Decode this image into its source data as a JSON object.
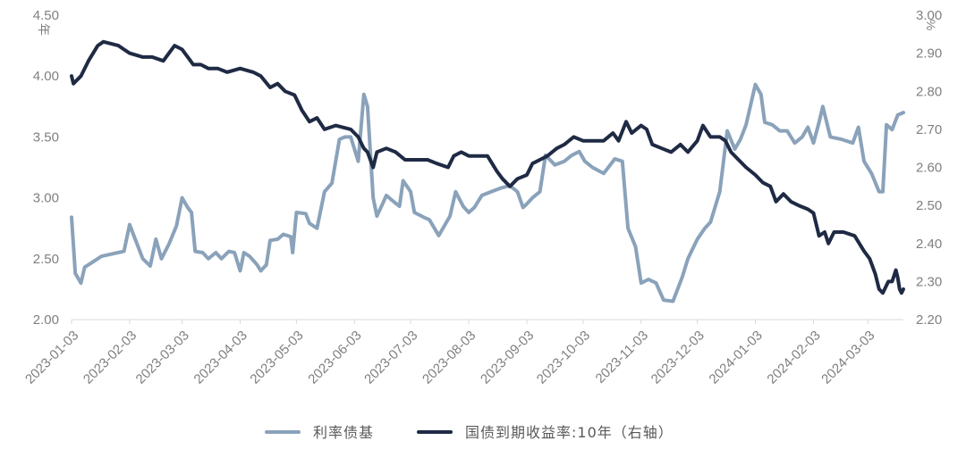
{
  "chart_data": {
    "type": "line",
    "left_axis": {
      "unit": "年",
      "range": [
        2.0,
        4.5
      ],
      "ticks": [
        "2.00",
        "2.50",
        "3.00",
        "3.50",
        "4.00",
        "4.50"
      ]
    },
    "right_axis": {
      "unit": "%",
      "range": [
        2.2,
        3.0
      ],
      "ticks": [
        "2.20",
        "2.30",
        "2.40",
        "2.50",
        "2.60",
        "2.70",
        "2.80",
        "2.90",
        "3.00"
      ]
    },
    "x_ticks": [
      "2023-01-03",
      "2023-02-03",
      "2023-03-03",
      "2023-04-03",
      "2023-05-03",
      "2023-06-03",
      "2023-07-03",
      "2023-08-03",
      "2023-09-03",
      "2023-10-03",
      "2023-11-03",
      "2023-12-03",
      "2024-01-03",
      "2024-02-03",
      "2024-03-03"
    ],
    "x_range": [
      "2023-01-03",
      "2024-03-22"
    ],
    "legend": {
      "position": "bottom"
    },
    "series": [
      {
        "name": "利率债基",
        "axis": "left",
        "color": "#8aa2ba",
        "points": [
          [
            "2023-01-03",
            2.84
          ],
          [
            "2023-01-05",
            2.38
          ],
          [
            "2023-01-08",
            2.3
          ],
          [
            "2023-01-10",
            2.43
          ],
          [
            "2023-01-13",
            2.46
          ],
          [
            "2023-01-16",
            2.49
          ],
          [
            "2023-01-19",
            2.52
          ],
          [
            "2023-01-25",
            2.54
          ],
          [
            "2023-01-31",
            2.56
          ],
          [
            "2023-02-03",
            2.78
          ],
          [
            "2023-02-06",
            2.66
          ],
          [
            "2023-02-10",
            2.5
          ],
          [
            "2023-02-14",
            2.44
          ],
          [
            "2023-02-17",
            2.66
          ],
          [
            "2023-02-20",
            2.5
          ],
          [
            "2023-02-24",
            2.62
          ],
          [
            "2023-02-28",
            2.77
          ],
          [
            "2023-03-03",
            3.0
          ],
          [
            "2023-03-06",
            2.92
          ],
          [
            "2023-03-08",
            2.88
          ],
          [
            "2023-03-10",
            2.56
          ],
          [
            "2023-03-14",
            2.55
          ],
          [
            "2023-03-17",
            2.5
          ],
          [
            "2023-03-21",
            2.55
          ],
          [
            "2023-03-24",
            2.5
          ],
          [
            "2023-03-28",
            2.56
          ],
          [
            "2023-03-31",
            2.55
          ],
          [
            "2023-04-03",
            2.4
          ],
          [
            "2023-04-05",
            2.55
          ],
          [
            "2023-04-08",
            2.52
          ],
          [
            "2023-04-12",
            2.45
          ],
          [
            "2023-04-14",
            2.4
          ],
          [
            "2023-04-17",
            2.45
          ],
          [
            "2023-04-19",
            2.65
          ],
          [
            "2023-04-23",
            2.66
          ],
          [
            "2023-04-26",
            2.7
          ],
          [
            "2023-04-30",
            2.68
          ],
          [
            "2023-05-01",
            2.55
          ],
          [
            "2023-05-03",
            2.88
          ],
          [
            "2023-05-08",
            2.87
          ],
          [
            "2023-05-10",
            2.79
          ],
          [
            "2023-05-14",
            2.75
          ],
          [
            "2023-05-18",
            3.05
          ],
          [
            "2023-05-22",
            3.12
          ],
          [
            "2023-05-26",
            3.48
          ],
          [
            "2023-05-29",
            3.5
          ],
          [
            "2023-06-01",
            3.5
          ],
          [
            "2023-06-05",
            3.3
          ],
          [
            "2023-06-08",
            3.85
          ],
          [
            "2023-06-10",
            3.75
          ],
          [
            "2023-06-13",
            3.0
          ],
          [
            "2023-06-15",
            2.85
          ],
          [
            "2023-06-18",
            2.95
          ],
          [
            "2023-06-20",
            3.02
          ],
          [
            "2023-06-23",
            2.98
          ],
          [
            "2023-06-27",
            2.93
          ],
          [
            "2023-06-29",
            3.14
          ],
          [
            "2023-07-03",
            3.05
          ],
          [
            "2023-07-05",
            2.88
          ],
          [
            "2023-07-10",
            2.84
          ],
          [
            "2023-07-13",
            2.82
          ],
          [
            "2023-07-18",
            2.69
          ],
          [
            "2023-07-24",
            2.85
          ],
          [
            "2023-07-27",
            3.05
          ],
          [
            "2023-07-31",
            2.93
          ],
          [
            "2023-08-03",
            2.88
          ],
          [
            "2023-08-06",
            2.92
          ],
          [
            "2023-08-10",
            3.02
          ],
          [
            "2023-08-15",
            3.05
          ],
          [
            "2023-08-20",
            3.08
          ],
          [
            "2023-08-25",
            3.1
          ],
          [
            "2023-08-29",
            3.05
          ],
          [
            "2023-09-01",
            2.92
          ],
          [
            "2023-09-03",
            2.95
          ],
          [
            "2023-09-06",
            3.0
          ],
          [
            "2023-09-10",
            3.05
          ],
          [
            "2023-09-13",
            3.35
          ],
          [
            "2023-09-18",
            3.27
          ],
          [
            "2023-09-23",
            3.3
          ],
          [
            "2023-09-27",
            3.35
          ],
          [
            "2023-10-01",
            3.38
          ],
          [
            "2023-10-04",
            3.3
          ],
          [
            "2023-10-08",
            3.25
          ],
          [
            "2023-10-14",
            3.2
          ],
          [
            "2023-10-20",
            3.32
          ],
          [
            "2023-10-24",
            3.3
          ],
          [
            "2023-10-27",
            2.75
          ],
          [
            "2023-10-31",
            2.6
          ],
          [
            "2023-11-03",
            2.3
          ],
          [
            "2023-11-07",
            2.33
          ],
          [
            "2023-11-11",
            2.3
          ],
          [
            "2023-11-15",
            2.16
          ],
          [
            "2023-11-20",
            2.15
          ],
          [
            "2023-11-25",
            2.35
          ],
          [
            "2023-11-28",
            2.5
          ],
          [
            "2023-12-03",
            2.66
          ],
          [
            "2023-12-07",
            2.75
          ],
          [
            "2023-12-10",
            2.8
          ],
          [
            "2023-12-15",
            3.05
          ],
          [
            "2023-12-19",
            3.55
          ],
          [
            "2023-12-23",
            3.4
          ],
          [
            "2023-12-26",
            3.48
          ],
          [
            "2023-12-29",
            3.6
          ],
          [
            "2024-01-03",
            3.93
          ],
          [
            "2024-01-06",
            3.85
          ],
          [
            "2024-01-08",
            3.62
          ],
          [
            "2024-01-12",
            3.6
          ],
          [
            "2024-01-16",
            3.55
          ],
          [
            "2024-01-20",
            3.55
          ],
          [
            "2024-01-24",
            3.45
          ],
          [
            "2024-01-28",
            3.5
          ],
          [
            "2024-01-31",
            3.58
          ],
          [
            "2024-02-03",
            3.45
          ],
          [
            "2024-02-06",
            3.62
          ],
          [
            "2024-02-08",
            3.75
          ],
          [
            "2024-02-12",
            3.5
          ],
          [
            "2024-02-18",
            3.48
          ],
          [
            "2024-02-24",
            3.45
          ],
          [
            "2024-02-27",
            3.58
          ],
          [
            "2024-03-01",
            3.3
          ],
          [
            "2024-03-05",
            3.2
          ],
          [
            "2024-03-09",
            3.05
          ],
          [
            "2024-03-11",
            3.05
          ],
          [
            "2024-03-13",
            3.6
          ],
          [
            "2024-03-16",
            3.56
          ],
          [
            "2024-03-19",
            3.68
          ],
          [
            "2024-03-22",
            3.7
          ]
        ]
      },
      {
        "name": "国债到期收益率:10年（右轴）",
        "axis": "right",
        "color": "#1f2a44",
        "points": [
          [
            "2023-01-03",
            2.84
          ],
          [
            "2023-01-04",
            2.82
          ],
          [
            "2023-01-08",
            2.84
          ],
          [
            "2023-01-12",
            2.88
          ],
          [
            "2023-01-17",
            2.92
          ],
          [
            "2023-01-20",
            2.93
          ],
          [
            "2023-01-28",
            2.92
          ],
          [
            "2023-01-31",
            2.91
          ],
          [
            "2023-02-03",
            2.9
          ],
          [
            "2023-02-10",
            2.89
          ],
          [
            "2023-02-15",
            2.89
          ],
          [
            "2023-02-21",
            2.88
          ],
          [
            "2023-02-24",
            2.9
          ],
          [
            "2023-02-27",
            2.92
          ],
          [
            "2023-03-03",
            2.91
          ],
          [
            "2023-03-06",
            2.89
          ],
          [
            "2023-03-09",
            2.87
          ],
          [
            "2023-03-13",
            2.87
          ],
          [
            "2023-03-17",
            2.86
          ],
          [
            "2023-03-22",
            2.86
          ],
          [
            "2023-03-27",
            2.85
          ],
          [
            "2023-04-03",
            2.86
          ],
          [
            "2023-04-10",
            2.85
          ],
          [
            "2023-04-14",
            2.84
          ],
          [
            "2023-04-19",
            2.81
          ],
          [
            "2023-04-23",
            2.82
          ],
          [
            "2023-04-27",
            2.8
          ],
          [
            "2023-05-02",
            2.79
          ],
          [
            "2023-05-06",
            2.75
          ],
          [
            "2023-05-10",
            2.72
          ],
          [
            "2023-05-14",
            2.73
          ],
          [
            "2023-05-18",
            2.7
          ],
          [
            "2023-05-24",
            2.71
          ],
          [
            "2023-06-01",
            2.7
          ],
          [
            "2023-06-05",
            2.68
          ],
          [
            "2023-06-08",
            2.65
          ],
          [
            "2023-06-10",
            2.64
          ],
          [
            "2023-06-13",
            2.6
          ],
          [
            "2023-06-15",
            2.64
          ],
          [
            "2023-06-20",
            2.65
          ],
          [
            "2023-06-25",
            2.64
          ],
          [
            "2023-06-30",
            2.62
          ],
          [
            "2023-07-06",
            2.62
          ],
          [
            "2023-07-12",
            2.62
          ],
          [
            "2023-07-17",
            2.61
          ],
          [
            "2023-07-23",
            2.6
          ],
          [
            "2023-07-26",
            2.63
          ],
          [
            "2023-07-30",
            2.64
          ],
          [
            "2023-08-03",
            2.63
          ],
          [
            "2023-08-08",
            2.63
          ],
          [
            "2023-08-13",
            2.63
          ],
          [
            "2023-08-18",
            2.59
          ],
          [
            "2023-08-21",
            2.57
          ],
          [
            "2023-08-25",
            2.55
          ],
          [
            "2023-08-29",
            2.57
          ],
          [
            "2023-09-03",
            2.58
          ],
          [
            "2023-09-06",
            2.61
          ],
          [
            "2023-09-10",
            2.62
          ],
          [
            "2023-09-14",
            2.63
          ],
          [
            "2023-09-19",
            2.65
          ],
          [
            "2023-09-23",
            2.66
          ],
          [
            "2023-09-28",
            2.68
          ],
          [
            "2023-10-03",
            2.67
          ],
          [
            "2023-10-08",
            2.67
          ],
          [
            "2023-10-14",
            2.67
          ],
          [
            "2023-10-19",
            2.69
          ],
          [
            "2023-10-22",
            2.67
          ],
          [
            "2023-10-26",
            2.72
          ],
          [
            "2023-10-29",
            2.69
          ],
          [
            "2023-11-03",
            2.71
          ],
          [
            "2023-11-06",
            2.7
          ],
          [
            "2023-11-09",
            2.66
          ],
          [
            "2023-11-14",
            2.65
          ],
          [
            "2023-11-19",
            2.64
          ],
          [
            "2023-11-24",
            2.66
          ],
          [
            "2023-11-28",
            2.64
          ],
          [
            "2023-12-03",
            2.67
          ],
          [
            "2023-12-06",
            2.71
          ],
          [
            "2023-12-10",
            2.68
          ],
          [
            "2023-12-15",
            2.68
          ],
          [
            "2023-12-18",
            2.67
          ],
          [
            "2023-12-21",
            2.64
          ],
          [
            "2023-12-25",
            2.62
          ],
          [
            "2023-12-29",
            2.6
          ],
          [
            "2024-01-03",
            2.58
          ],
          [
            "2024-01-07",
            2.56
          ],
          [
            "2024-01-11",
            2.55
          ],
          [
            "2024-01-14",
            2.51
          ],
          [
            "2024-01-18",
            2.53
          ],
          [
            "2024-01-22",
            2.51
          ],
          [
            "2024-01-26",
            2.5
          ],
          [
            "2024-01-31",
            2.49
          ],
          [
            "2024-02-03",
            2.48
          ],
          [
            "2024-02-06",
            2.42
          ],
          [
            "2024-02-09",
            2.43
          ],
          [
            "2024-02-11",
            2.4
          ],
          [
            "2024-02-14",
            2.43
          ],
          [
            "2024-02-19",
            2.43
          ],
          [
            "2024-02-25",
            2.42
          ],
          [
            "2024-03-01",
            2.38
          ],
          [
            "2024-03-04",
            2.36
          ],
          [
            "2024-03-07",
            2.32
          ],
          [
            "2024-03-09",
            2.28
          ],
          [
            "2024-03-11",
            2.27
          ],
          [
            "2024-03-14",
            2.3
          ],
          [
            "2024-03-16",
            2.3
          ],
          [
            "2024-03-18",
            2.33
          ],
          [
            "2024-03-19",
            2.31
          ],
          [
            "2024-03-20",
            2.28
          ],
          [
            "2024-03-21",
            2.27
          ],
          [
            "2024-03-22",
            2.28
          ]
        ]
      }
    ]
  }
}
